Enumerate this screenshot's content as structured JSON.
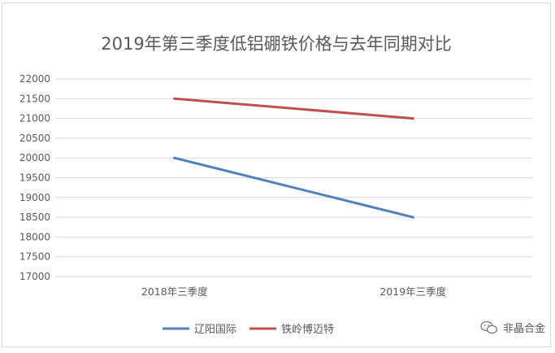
{
  "chart_data": {
    "type": "line",
    "title": "2019年第三季度低铝硼铁价格与去年同期对比",
    "categories": [
      "2018年三季度",
      "2019年三季度"
    ],
    "ylim": [
      17000,
      22000
    ],
    "yticks": [
      17000,
      17500,
      18000,
      18500,
      19000,
      19500,
      20000,
      20500,
      21000,
      21500,
      22000
    ],
    "grid": true,
    "legend": "bottom",
    "series": [
      {
        "name": "辽阳国际",
        "values": [
          20000,
          18500
        ],
        "color": "#4f81bd"
      },
      {
        "name": "铁岭博迈特",
        "values": [
          21500,
          21000
        ],
        "color": "#c0504d"
      }
    ]
  },
  "watermark": {
    "text": "非晶合金",
    "icon": "wechat-icon"
  }
}
